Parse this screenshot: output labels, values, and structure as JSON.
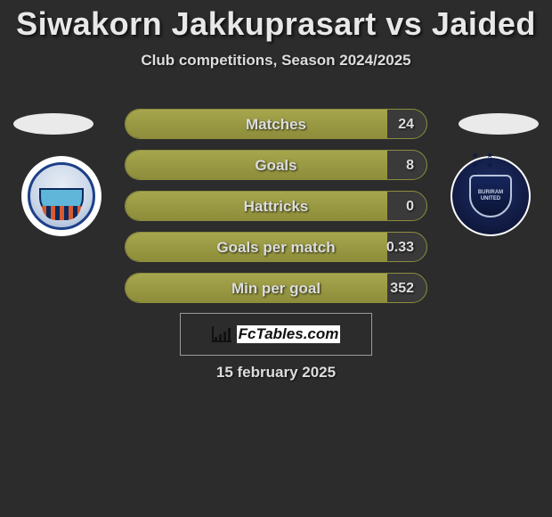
{
  "title": "Siwakorn Jakkuprasart vs Jaided",
  "subtitle": "Club competitions, Season 2024/2025",
  "brand": "FcTables.com",
  "date": "15 february 2025",
  "colors": {
    "background": "#2c2c2c",
    "row_border": "#8c8c3e",
    "row_fill": "#8d8d3a",
    "text": "#dddddd"
  },
  "stats": [
    {
      "label": "Matches",
      "value": "24",
      "fill_pct": 87
    },
    {
      "label": "Goals",
      "value": "8",
      "fill_pct": 87
    },
    {
      "label": "Hattricks",
      "value": "0",
      "fill_pct": 87
    },
    {
      "label": "Goals per match",
      "value": "0.33",
      "fill_pct": 87
    },
    {
      "label": "Min per goal",
      "value": "352",
      "fill_pct": 87
    }
  ],
  "left_team": {
    "crest_colors": {
      "ring": "#1d3f8a",
      "top": "#5fb6d9",
      "stripe_a": "#d85a2f",
      "stripe_b": "#0a2a5f"
    }
  },
  "right_team": {
    "name_top": "BURIRAM",
    "name_bottom": "UNITED",
    "crest_colors": {
      "bg": "#10193f",
      "shield_border": "#b8c3dc"
    }
  }
}
